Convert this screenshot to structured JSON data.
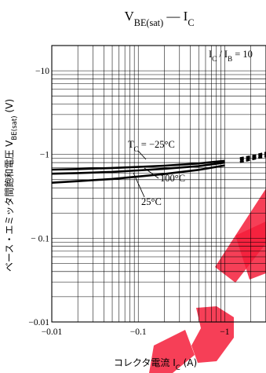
{
  "chart_data": {
    "type": "line",
    "title": "V_BE(sat) — I_C",
    "x_scale": "log",
    "y_scale": "log",
    "xlim": [
      -0.01,
      -3
    ],
    "ylim": [
      -0.01,
      -20
    ],
    "grid": true,
    "x_ticks": [
      "−0.01",
      "−0.1",
      "−1"
    ],
    "y_ticks": [
      "−0.01",
      "− 0.1",
      "−1",
      "−10"
    ],
    "xlabel": {
      "jp": "コレクタ電流",
      "sym": "I",
      "sub": "C",
      "unit": "(A)"
    },
    "ylabel": {
      "jp": "ベース・エミッタ間飽和電圧",
      "sym": "V",
      "sub": "BE(sat)",
      "unit": "(V)"
    },
    "condition": "I_C / I_B = 10",
    "annotations": [
      "T_C = −25°C",
      "100°C",
      "25°C"
    ],
    "series": [
      {
        "name": "T_C = −25°C",
        "x": [
          -0.01,
          -0.02,
          -0.05,
          -0.1,
          -0.2,
          -0.5,
          -1,
          -2,
          -3
        ],
        "y": [
          -0.66,
          -0.67,
          -0.69,
          -0.71,
          -0.735,
          -0.78,
          -0.84,
          -0.95,
          -1.05
        ]
      },
      {
        "name": "25°C",
        "x": [
          -0.01,
          -0.02,
          -0.05,
          -0.1,
          -0.2,
          -0.5,
          -1,
          -2,
          -3
        ],
        "y": [
          -0.59,
          -0.6,
          -0.62,
          -0.645,
          -0.675,
          -0.725,
          -0.8,
          -0.91,
          -1.0
        ]
      },
      {
        "name": "100°C",
        "x": [
          -0.01,
          -0.02,
          -0.05,
          -0.1,
          -0.2,
          -0.5,
          -1,
          -2,
          -3
        ],
        "y": [
          -0.46,
          -0.48,
          -0.51,
          -0.545,
          -0.585,
          -0.655,
          -0.74,
          -0.87,
          -0.95
        ]
      }
    ]
  }
}
